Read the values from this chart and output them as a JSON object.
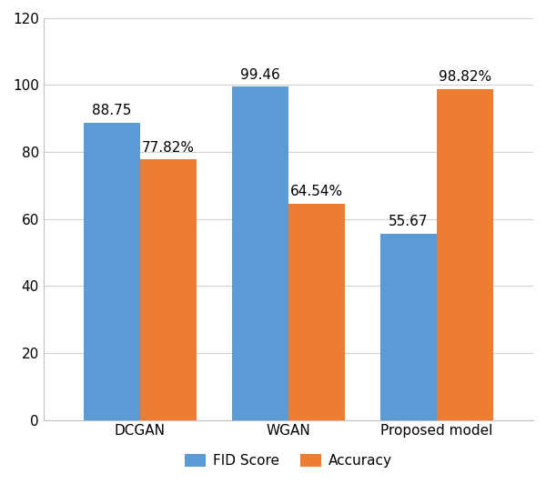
{
  "categories": [
    "DCGAN",
    "WGAN",
    "Proposed model"
  ],
  "fid_scores": [
    88.75,
    99.46,
    55.67
  ],
  "accuracies": [
    77.82,
    64.54,
    98.82
  ],
  "fid_labels": [
    "88.75",
    "99.46",
    "55.67"
  ],
  "acc_labels": [
    "77.82%",
    "64.54%",
    "98.82%"
  ],
  "fid_color": "#5b9bd5",
  "acc_color": "#ed7d31",
  "ylim": [
    0,
    120
  ],
  "yticks": [
    0,
    20,
    40,
    60,
    80,
    100,
    120
  ],
  "legend_labels": [
    "FID Score",
    "Accuracy"
  ],
  "bar_width": 0.38,
  "figsize": [
    6.0,
    5.43
  ],
  "dpi": 100
}
